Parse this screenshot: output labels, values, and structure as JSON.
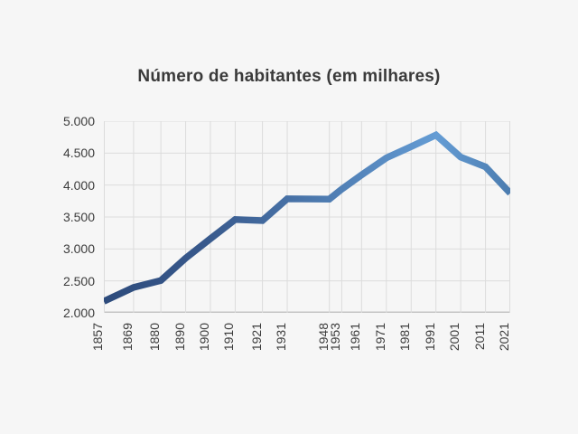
{
  "page": {
    "background_color": "#f6f6f6",
    "text_color": "#3c3c3c"
  },
  "chart_data": {
    "type": "line",
    "title": "Número de habitantes (em milhares)",
    "xlabel": "",
    "ylabel": "",
    "x_axis_type": "linear-year",
    "xlim": [
      1857,
      2021
    ],
    "ylim": [
      2000,
      5000
    ],
    "grid": true,
    "legend": "none",
    "x": [
      1857,
      1869,
      1880,
      1890,
      1900,
      1910,
      1921,
      1931,
      1948,
      1953,
      1961,
      1971,
      1981,
      1991,
      2001,
      2011,
      2021
    ],
    "x_tick_labels": [
      "1857",
      "1869",
      "1880",
      "1890",
      "1900",
      "1910",
      "1921",
      "1931",
      "1948",
      "1953",
      "1961",
      "1971",
      "1981",
      "1991",
      "2001",
      "2011",
      "2021"
    ],
    "series": [
      {
        "name": "Número de habitantes (em milhares)",
        "values": [
          2181,
          2398,
          2506,
          2855,
          3161,
          3461,
          3443,
          3785,
          3780,
          3936,
          4160,
          4426,
          4601,
          4784,
          4437,
          4285,
          3872
        ]
      }
    ],
    "y_ticks": {
      "values": [
        2000,
        2500,
        3000,
        3500,
        4000,
        4500,
        5000
      ],
      "labels": [
        "2.000",
        "2.500",
        "3.000",
        "3.500",
        "4.000",
        "4.500",
        "5.000"
      ]
    },
    "style": {
      "line_gradient_stops": [
        {
          "offset": 0.0,
          "color": "#2d4b7c"
        },
        {
          "offset": 0.25,
          "color": "#38598c"
        },
        {
          "offset": 0.5,
          "color": "#4a76ab"
        },
        {
          "offset": 0.82,
          "color": "#649cd4"
        },
        {
          "offset": 1.0,
          "color": "#4b7caf"
        }
      ],
      "line_width": 7.5,
      "gridline_color": "#dcdcdc",
      "axis_line_color": "#c4c4c4"
    }
  }
}
